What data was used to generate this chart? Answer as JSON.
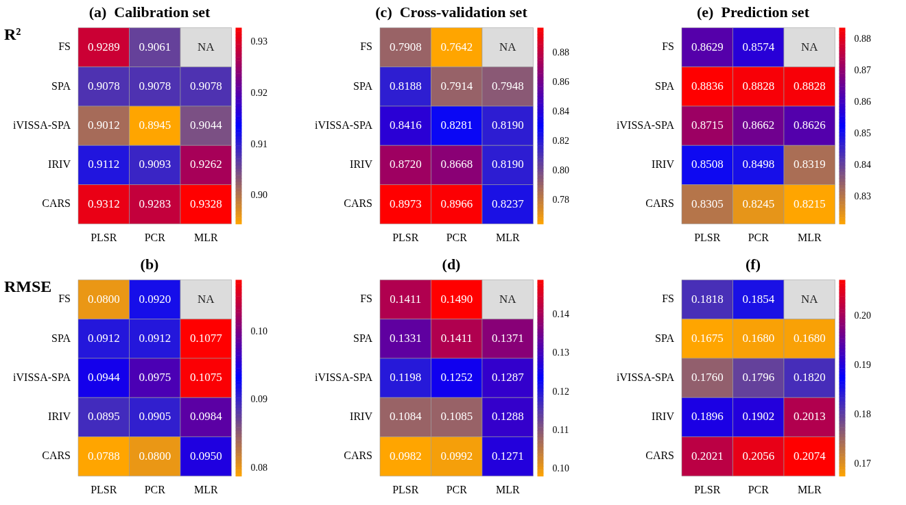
{
  "chart_data": [
    {
      "type": "heatmap",
      "title": "(a)  Calibration set",
      "annotations": [
        "R²"
      ],
      "categories": [
        "PLSR",
        "PCR",
        "MLR"
      ],
      "y_categories": [
        "FS",
        "SPA",
        "iVISSA-SPA",
        "IRIV",
        "CARS"
      ],
      "cells": [
        [
          0.9289,
          0.9061,
          null
        ],
        [
          0.9078,
          0.9078,
          0.9078
        ],
        [
          0.9012,
          0.8945,
          0.9044
        ],
        [
          0.9112,
          0.9093,
          0.9262
        ],
        [
          0.9312,
          0.9283,
          0.9328
        ]
      ],
      "cell_labels": [
        [
          "0.9289",
          "0.9061",
          "NA"
        ],
        [
          "0.9078",
          "0.9078",
          "0.9078"
        ],
        [
          "0.9012",
          "0.8945",
          "0.9044"
        ],
        [
          "0.9112",
          "0.9093",
          "0.9262"
        ],
        [
          "0.9312",
          "0.9283",
          "0.9328"
        ]
      ],
      "clim": [
        0.8945,
        0.9328
      ],
      "cticks": [
        {
          "value": 0.9,
          "label": "0.90"
        },
        0.91,
        0.92,
        0.93
      ]
    },
    {
      "type": "heatmap",
      "title": "(c)  Cross-validation set",
      "categories": [
        "PLSR",
        "PCR",
        "MLR"
      ],
      "y_categories": [
        "FS",
        "SPA",
        "iVISSA-SPA",
        "IRIV",
        "CARS"
      ],
      "cells": [
        [
          0.7908,
          0.7642,
          null
        ],
        [
          0.8188,
          0.7914,
          0.7948
        ],
        [
          0.8416,
          0.8281,
          0.819
        ],
        [
          0.872,
          0.8668,
          0.819
        ],
        [
          0.8973,
          0.8966,
          0.8237
        ]
      ],
      "cell_labels": [
        [
          "0.7908",
          "0.7642",
          "NA"
        ],
        [
          "0.8188",
          "0.7914",
          "0.7948"
        ],
        [
          "0.8416",
          "0.8281",
          "0.8190"
        ],
        [
          "0.8720",
          "0.8668",
          "0.8190"
        ],
        [
          "0.8973",
          "0.8966",
          "0.8237"
        ]
      ],
      "clim": [
        0.7642,
        0.8973
      ],
      "cticks": [
        0.78,
        {
          "value": 0.8,
          "label": "0.80"
        },
        0.82,
        0.84,
        0.86,
        0.88
      ]
    },
    {
      "type": "heatmap",
      "title": "(e)  Prediction set",
      "categories": [
        "PLSR",
        "PCR",
        "MLR"
      ],
      "y_categories": [
        "FS",
        "SPA",
        "iVISSA-SPA",
        "IRIV",
        "CARS"
      ],
      "cells": [
        [
          0.8629,
          0.8574,
          null
        ],
        [
          0.8836,
          0.8828,
          0.8828
        ],
        [
          0.8715,
          0.8662,
          0.8626
        ],
        [
          0.8508,
          0.8498,
          0.8319
        ],
        [
          0.8305,
          0.8245,
          0.8215
        ]
      ],
      "cell_labels": [
        [
          "0.8629",
          "0.8574",
          "NA"
        ],
        [
          "0.8836",
          "0.8828",
          "0.8828"
        ],
        [
          "0.8715",
          "0.8662",
          "0.8626"
        ],
        [
          "0.8508",
          "0.8498",
          "0.8319"
        ],
        [
          "0.8305",
          "0.8245",
          "0.8215"
        ]
      ],
      "clim": [
        0.8215,
        0.8836
      ],
      "cticks": [
        0.83,
        0.84,
        0.85,
        0.86,
        0.87,
        0.88
      ]
    },
    {
      "type": "heatmap",
      "title": "(b)",
      "annotations": [
        "RMSE"
      ],
      "categories": [
        "PLSR",
        "PCR",
        "MLR"
      ],
      "y_categories": [
        "FS",
        "SPA",
        "iVISSA-SPA",
        "IRIV",
        "CARS"
      ],
      "cells": [
        [
          0.08,
          0.092,
          null
        ],
        [
          0.0912,
          0.0912,
          0.1077
        ],
        [
          0.0944,
          0.0975,
          0.1075
        ],
        [
          0.0895,
          0.0905,
          0.0984
        ],
        [
          0.0788,
          0.08,
          0.095
        ]
      ],
      "cell_labels": [
        [
          "0.0800",
          "0.0920",
          "NA"
        ],
        [
          "0.0912",
          "0.0912",
          "0.1077"
        ],
        [
          "0.0944",
          "0.0975",
          "0.1075"
        ],
        [
          "0.0895",
          "0.0905",
          "0.0984"
        ],
        [
          "0.0788",
          "0.0800",
          "0.0950"
        ]
      ],
      "clim": [
        0.0788,
        0.1077
      ],
      "cticks": [
        0.08,
        0.09,
        {
          "value": 0.1,
          "label": "0.10"
        }
      ]
    },
    {
      "type": "heatmap",
      "title": "(d)",
      "categories": [
        "PLSR",
        "PCR",
        "MLR"
      ],
      "y_categories": [
        "FS",
        "SPA",
        "iVISSA-SPA",
        "IRIV",
        "CARS"
      ],
      "cells": [
        [
          0.1411,
          0.149,
          null
        ],
        [
          0.1331,
          0.1411,
          0.1371
        ],
        [
          0.1198,
          0.1252,
          0.1287
        ],
        [
          0.1084,
          0.1085,
          0.1288
        ],
        [
          0.0982,
          0.0992,
          0.1271
        ]
      ],
      "cell_labels": [
        [
          "0.1411",
          "0.1490",
          "NA"
        ],
        [
          "0.1331",
          "0.1411",
          "0.1371"
        ],
        [
          "0.1198",
          "0.1252",
          "0.1287"
        ],
        [
          "0.1084",
          "0.1085",
          "0.1288"
        ],
        [
          "0.0982",
          "0.0992",
          "0.1271"
        ]
      ],
      "clim": [
        0.0982,
        0.149
      ],
      "cticks": [
        {
          "value": 0.1,
          "label": "0.10"
        },
        0.11,
        0.12,
        0.13,
        0.14
      ]
    },
    {
      "type": "heatmap",
      "title": "(f)",
      "categories": [
        "PLSR",
        "PCR",
        "MLR"
      ],
      "y_categories": [
        "FS",
        "SPA",
        "iVISSA-SPA",
        "IRIV",
        "CARS"
      ],
      "cells": [
        [
          0.1818,
          0.1854,
          null
        ],
        [
          0.1675,
          0.168,
          0.168
        ],
        [
          0.176,
          0.1796,
          0.182
        ],
        [
          0.1896,
          0.1902,
          0.2013
        ],
        [
          0.2021,
          0.2056,
          0.2074
        ]
      ],
      "cell_labels": [
        [
          "0.1818",
          "0.1854",
          "NA"
        ],
        [
          "0.1675",
          "0.1680",
          "0.1680"
        ],
        [
          "0.1760",
          "0.1796",
          "0.1820"
        ],
        [
          "0.1896",
          "0.1902",
          "0.2013"
        ],
        [
          "0.2021",
          "0.2056",
          "0.2074"
        ]
      ],
      "clim": [
        0.1675,
        0.2074
      ],
      "cticks": [
        0.17,
        0.18,
        0.19,
        {
          "value": 0.2,
          "label": "0.20"
        }
      ]
    }
  ]
}
